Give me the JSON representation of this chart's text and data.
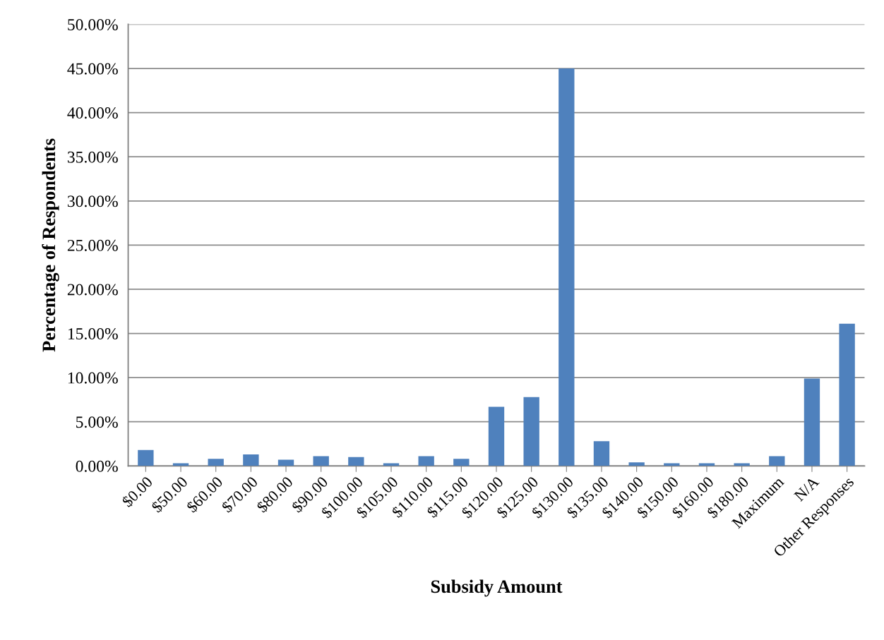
{
  "chart_data": {
    "type": "bar",
    "xlabel": "Subsidy Amount",
    "ylabel": "Percentage of Respondents",
    "categories": [
      "$0.00",
      "$50.00",
      "$60.00",
      "$70.00",
      "$80.00",
      "$90.00",
      "$100.00",
      "$105.00",
      "$110.00",
      "$115.00",
      "$120.00",
      "$125.00",
      "$130.00",
      "$135.00",
      "$140.00",
      "$150.00",
      "$160.00",
      "$180.00",
      "Maximum",
      "N/A",
      "Other Responses"
    ],
    "values": [
      1.8,
      0.3,
      0.8,
      1.3,
      0.7,
      1.1,
      1.0,
      0.3,
      1.1,
      0.8,
      6.7,
      7.8,
      45.0,
      2.8,
      0.4,
      0.3,
      0.3,
      0.3,
      1.1,
      9.9,
      16.1
    ],
    "color": "#4f81bd",
    "ylim": [
      0,
      50
    ],
    "yticks": [
      {
        "value": 0,
        "label": "0.00%"
      },
      {
        "value": 5,
        "label": "5.00%"
      },
      {
        "value": 10,
        "label": "10.00%"
      },
      {
        "value": 15,
        "label": "15.00%"
      },
      {
        "value": 20,
        "label": "20.00%"
      },
      {
        "value": 25,
        "label": "25.00%"
      },
      {
        "value": 30,
        "label": "30.00%"
      },
      {
        "value": 35,
        "label": "35.00%"
      },
      {
        "value": 40,
        "label": "40.00%"
      },
      {
        "value": 45,
        "label": "45.00%"
      },
      {
        "value": 50,
        "label": "50.00%"
      }
    ],
    "grid": "y"
  }
}
